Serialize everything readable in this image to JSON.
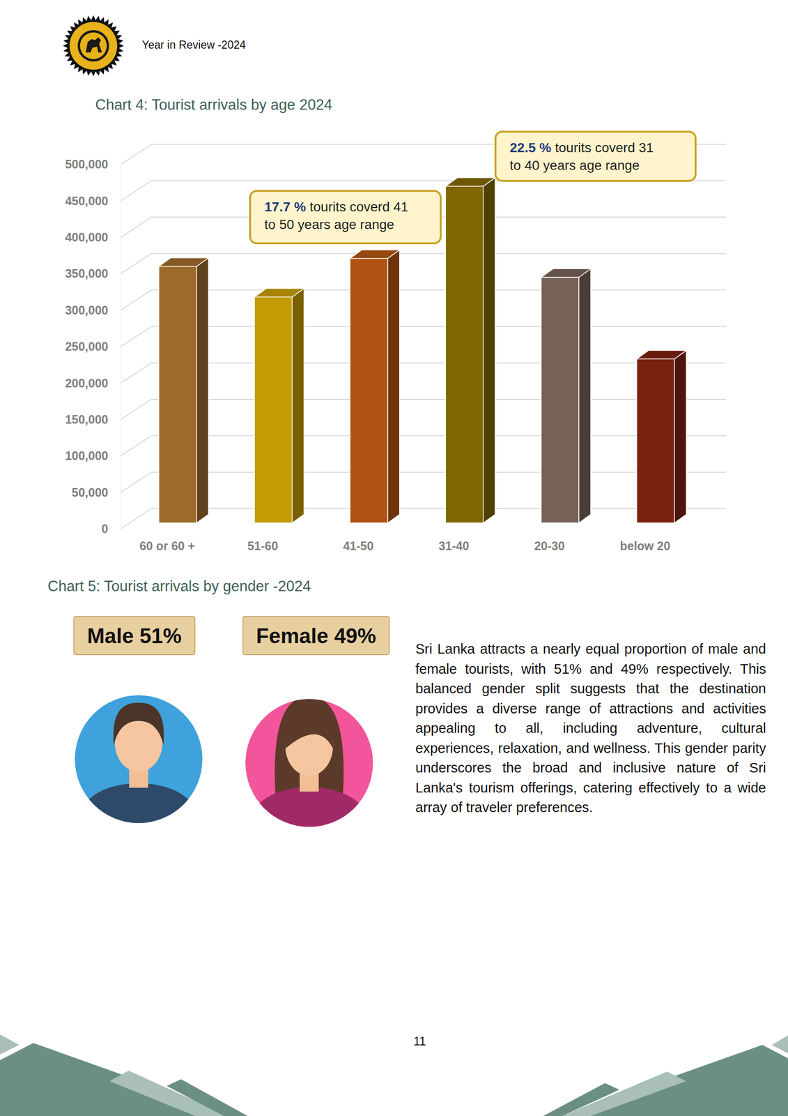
{
  "header": {
    "title": "Year in Review -2024"
  },
  "chart_data": [
    {
      "type": "bar",
      "title": "Chart 4: Tourist arrivals by age 2024",
      "categories": [
        "60 or 60 +",
        "51-60",
        "41-50",
        "31-40",
        "20-30",
        "below 20"
      ],
      "values": [
        352000,
        310000,
        363000,
        462000,
        337000,
        225000
      ],
      "colors": [
        "#9C6A2B",
        "#C49A05",
        "#B05312",
        "#806600",
        "#766257",
        "#7A2110"
      ],
      "ylim": [
        0,
        500000
      ],
      "yticks": [
        0,
        {
          "value": 50000,
          "label": "50,000"
        },
        {
          "value": 100000,
          "label": "100,000"
        },
        {
          "value": 150000,
          "label": "150,000"
        },
        {
          "value": 200000,
          "label": "200,000"
        },
        {
          "value": 250000,
          "label": "250,000"
        },
        {
          "value": 300000,
          "label": "300,000"
        },
        {
          "value": 350000,
          "label": "350,000"
        },
        {
          "value": 400000,
          "label": "400,000"
        },
        {
          "value": 450000,
          "label": "450,000"
        },
        {
          "value": 500000,
          "label": "500,000"
        }
      ],
      "grid": true,
      "annotations": [
        {
          "highlight": "17.7 %",
          "lines": [
            "tourits coverd 41",
            "to 50 years age range"
          ]
        },
        {
          "highlight": "22.5 %",
          "lines": [
            "tourits coverd 31",
            "to 40 years age range"
          ]
        }
      ]
    },
    {
      "type": "pictogram",
      "title": "Chart 5: Tourist arrivals by gender -2024",
      "values": [
        51,
        49
      ],
      "value_labels": [
        "Male 51%",
        "Female 49%"
      ],
      "data_labels": true,
      "colors": [
        "#3FA2DC",
        "#F2559B"
      ]
    }
  ],
  "paragraph": "Sri Lanka attracts a nearly equal proportion of male and female tourists, with 51% and 49% respectively. This balanced gender split suggests that the destination provides a diverse range of attractions and activities appealing to all, including adventure, cultural experiences, relaxation, and wellness. This gender parity underscores the broad and inclusive nature of Sri Lanka's tourism offerings, catering effectively to a wide array of traveler preferences.",
  "page_number": 11
}
